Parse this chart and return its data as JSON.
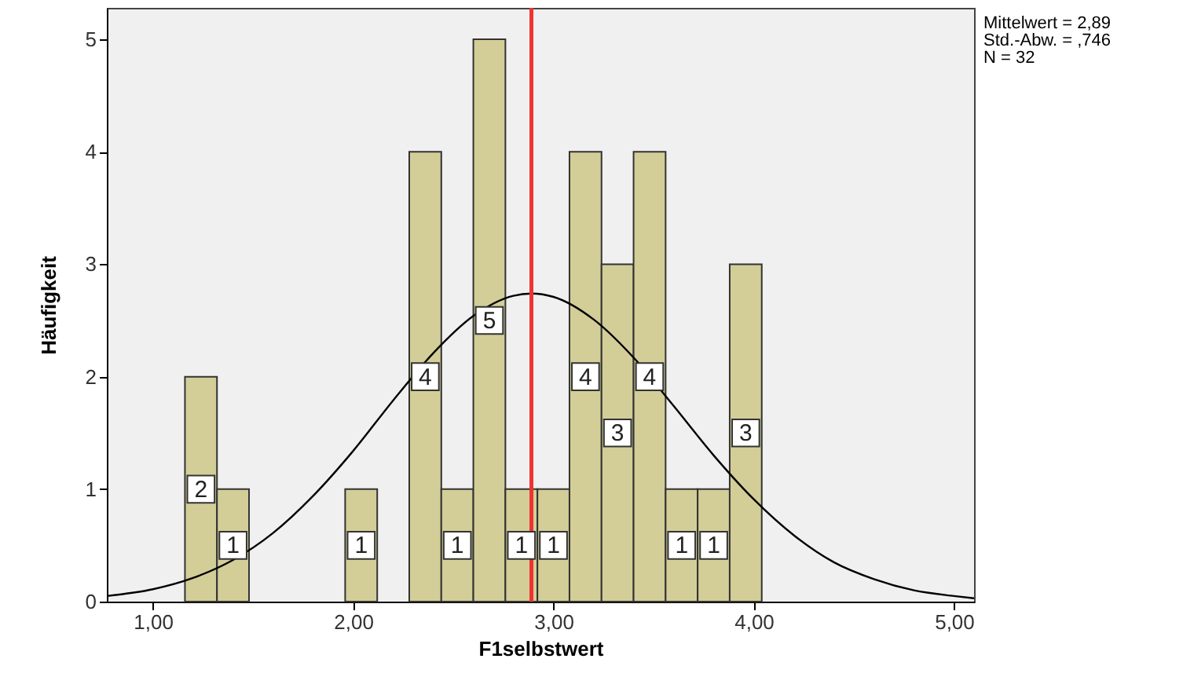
{
  "chart_data": {
    "type": "histogram",
    "xlabel": "F1selbstwert",
    "ylabel": "Häufigkeit",
    "bins": [
      1.16,
      1.32,
      1.48,
      1.64,
      1.8,
      1.96,
      2.12,
      2.28,
      2.44,
      2.6,
      2.76,
      2.92,
      3.08,
      3.24,
      3.4,
      3.56,
      3.72,
      3.88,
      4.04
    ],
    "values": [
      2,
      1,
      0,
      0,
      0,
      1,
      0,
      4,
      1,
      5,
      1,
      1,
      4,
      3,
      4,
      1,
      1,
      3
    ],
    "color": "#d3ce98",
    "value_labels": [
      "2",
      "1",
      null,
      null,
      null,
      "1",
      null,
      "4",
      "1",
      "5",
      "1",
      "1",
      "4",
      "3",
      "4",
      "1",
      "1",
      "3"
    ],
    "xlim": [
      0.77,
      5.1
    ],
    "xticks": [
      {
        "value": 1,
        "label": "1,00"
      },
      {
        "value": 2,
        "label": "2,00"
      },
      {
        "value": 3,
        "label": "3,00"
      },
      {
        "value": 4,
        "label": "4,00"
      },
      {
        "value": 5,
        "label": "5,00"
      }
    ],
    "ylim": [
      0,
      5.28
    ],
    "yticks": [
      0,
      1,
      2,
      3,
      4,
      5
    ],
    "grid": false,
    "ref_lines": [
      {
        "axis": "x",
        "value": 2.89,
        "color": "#ee3333"
      }
    ],
    "series": [
      {
        "type": "line",
        "color": "#000000",
        "x": [
          0.77,
          1.0,
          1.2,
          1.4,
          1.6,
          1.8,
          2.0,
          2.2,
          2.4,
          2.6,
          2.8,
          2.89,
          3.0,
          3.2,
          3.4,
          3.6,
          3.8,
          4.0,
          4.2,
          4.4,
          4.6,
          4.8,
          5.0,
          5.1
        ],
        "values": [
          0.05,
          0.11,
          0.21,
          0.37,
          0.61,
          0.94,
          1.34,
          1.79,
          2.21,
          2.54,
          2.72,
          2.74,
          2.71,
          2.51,
          2.17,
          1.74,
          1.3,
          0.91,
          0.59,
          0.35,
          0.2,
          0.1,
          0.05,
          0.03
        ]
      }
    ],
    "annotations": [
      "Mittelwert = 2,89",
      "Std.-Abw. = ,746",
      "N = 32"
    ]
  }
}
